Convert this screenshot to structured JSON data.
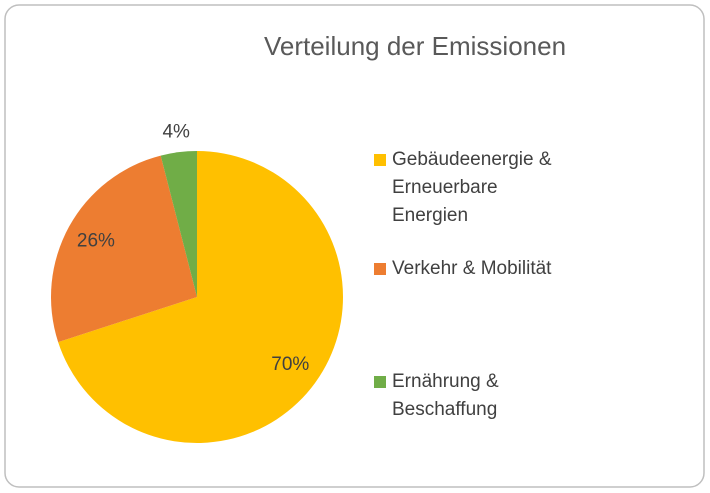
{
  "chart_data": {
    "type": "pie",
    "title": "Verteilung der Emissionen",
    "categories": [
      "Gebäudeenergie & Erneuerbare Energien",
      "Verkehr & Mobilität",
      "Ernährung & Beschaffung"
    ],
    "values": [
      70,
      26,
      4
    ],
    "value_labels": [
      "70%",
      "26%",
      "4%"
    ],
    "colors": [
      "#ffc000",
      "#ed7d31",
      "#70ad47"
    ],
    "legend": "right"
  }
}
